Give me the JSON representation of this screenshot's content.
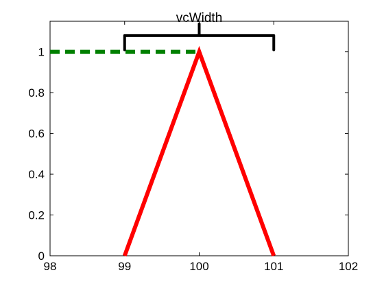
{
  "chart_data": {
    "type": "line",
    "title": "",
    "xlabel": "",
    "ylabel": "",
    "xlim": [
      98,
      102
    ],
    "ylim": [
      0,
      1.15
    ],
    "xticks": [
      98,
      99,
      100,
      101,
      102
    ],
    "yticks": [
      0,
      0.2,
      0.4,
      0.6,
      0.8,
      1
    ],
    "xtick_labels": [
      "98",
      "99",
      "100",
      "101",
      "102"
    ],
    "ytick_labels": [
      "0",
      "0.2",
      "0.4",
      "0.6",
      "0.8",
      "1"
    ],
    "grid": false,
    "series": [
      {
        "style": "solid",
        "color": "#ff0000",
        "x": [
          99,
          100,
          101
        ],
        "y": [
          0,
          1,
          0
        ]
      },
      {
        "style": "dashed",
        "color": "#008000",
        "x": [
          98,
          100
        ],
        "y": [
          1,
          1
        ]
      }
    ],
    "annotations": [
      {
        "kind": "bracket",
        "text": "vcWidth",
        "x_start": 99,
        "x_end": 101,
        "x_center": 100,
        "y_base": 1.02,
        "y_top": 1.08,
        "color": "#000000"
      }
    ]
  }
}
